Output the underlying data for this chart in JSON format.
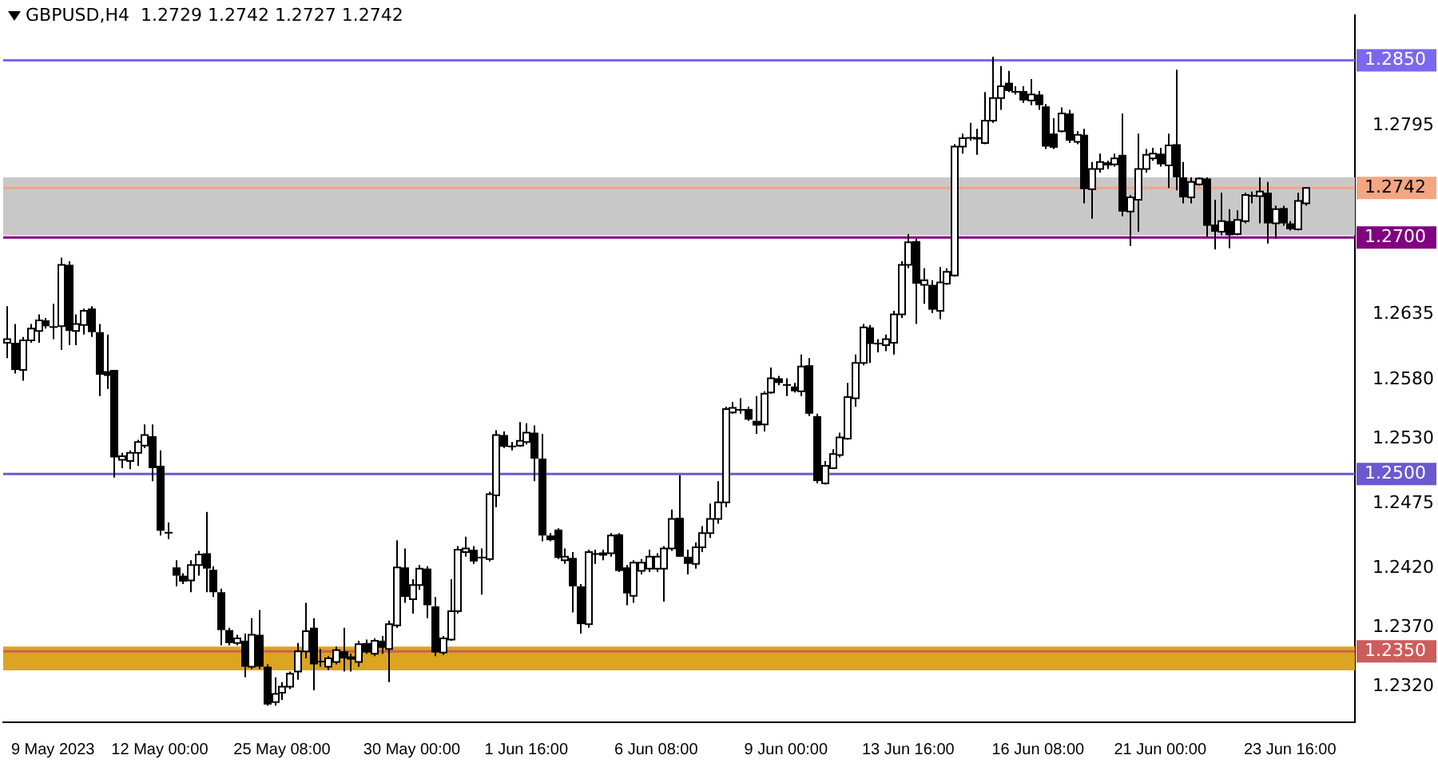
{
  "chart_data": {
    "type": "candlestick",
    "title": "GBPUSD,H4  1.2729 1.2742 1.2727 1.2742",
    "color": "#000000",
    "categories": [
      null,
      null,
      null,
      null,
      null,
      null,
      "9 May 2023",
      null,
      null,
      null,
      null,
      null,
      null,
      null,
      null,
      null,
      null,
      null,
      null,
      null,
      "12 May 00:00",
      null,
      null,
      null,
      null,
      null,
      null,
      null,
      null,
      null,
      null,
      null,
      null,
      null,
      null,
      null,
      "25 May 08:00",
      null,
      null,
      null,
      null,
      null,
      null,
      null,
      null,
      null,
      null,
      null,
      null,
      null,
      null,
      null,
      null,
      "30 May 00:00",
      null,
      null,
      null,
      null,
      null,
      null,
      null,
      null,
      null,
      null,
      null,
      null,
      null,
      null,
      "1 Jun 16:00",
      null,
      null,
      null,
      null,
      null,
      null,
      null,
      null,
      null,
      null,
      null,
      null,
      null,
      null,
      null,
      null,
      "6 Jun 08:00",
      null,
      null,
      null,
      null,
      null,
      null,
      null,
      null,
      null,
      null,
      null,
      null,
      null,
      null,
      null,
      null,
      "9 Jun 00:00",
      null,
      null,
      null,
      null,
      null,
      null,
      null,
      null,
      null,
      null,
      null,
      null,
      null,
      null,
      null,
      "13 Jun 16:00",
      null,
      null,
      null,
      null,
      null,
      null,
      null,
      null,
      null,
      null,
      null,
      null,
      null,
      null,
      null,
      null,
      "16 Jun 08:00",
      null,
      null,
      null,
      null,
      null,
      null,
      null,
      null,
      null,
      null,
      null,
      null,
      null,
      null,
      null,
      "21 Jun 00:00",
      null,
      null,
      null,
      null,
      null,
      null,
      null,
      null,
      null,
      null,
      null,
      null,
      null,
      null,
      null,
      null,
      "23 Jun 16:00",
      null,
      null,
      null,
      null,
      null,
      null,
      null,
      null
    ],
    "ohlc": [
      [
        1.2611,
        1.2642,
        1.2598,
        1.2614
      ],
      [
        1.2611,
        1.2627,
        1.2585,
        1.2588
      ],
      [
        1.2588,
        1.2616,
        1.2579,
        1.2613
      ],
      [
        1.2613,
        1.2627,
        1.2611,
        1.2623
      ],
      [
        1.2621,
        1.2635,
        1.2611,
        1.263
      ],
      [
        1.263,
        1.2632,
        1.2623,
        1.2625
      ],
      [
        1.2625,
        1.2644,
        1.2614,
        1.2624
      ],
      [
        1.2625,
        1.2683,
        1.2605,
        1.2677
      ],
      [
        1.2677,
        1.268,
        1.2609,
        1.2621
      ],
      [
        1.2621,
        1.2635,
        1.2609,
        1.2627
      ],
      [
        1.2626,
        1.264,
        1.2618,
        1.2638
      ],
      [
        1.264,
        1.2642,
        1.2616,
        1.262
      ],
      [
        1.262,
        1.2627,
        1.2566,
        1.2584
      ],
      [
        1.2587,
        1.2618,
        1.2572,
        1.2583
      ],
      [
        1.2588,
        1.2588,
        1.2497,
        1.2514
      ],
      [
        1.2512,
        1.2518,
        1.2505,
        1.2515
      ],
      [
        1.2511,
        1.252,
        1.2504,
        1.2518
      ],
      [
        1.2518,
        1.2529,
        1.2507,
        1.2527
      ],
      [
        1.2524,
        1.2542,
        1.2522,
        1.2533
      ],
      [
        1.2532,
        1.2542,
        1.2494,
        1.2505
      ],
      [
        1.2507,
        1.252,
        1.2448,
        1.2452
      ],
      [
        1.2451,
        1.2459,
        1.2445,
        1.245
      ],
      [
        1.2421,
        1.2427,
        1.2405,
        1.2414
      ],
      [
        1.2414,
        1.2416,
        1.2407,
        1.2409
      ],
      [
        1.241,
        1.2427,
        1.24,
        1.2423
      ],
      [
        1.2423,
        1.2435,
        1.2414,
        1.2432
      ],
      [
        1.2433,
        1.2468,
        1.24,
        1.242
      ],
      [
        1.2419,
        1.2422,
        1.2396,
        1.24
      ],
      [
        1.24,
        1.2403,
        1.2355,
        1.2368
      ],
      [
        1.2368,
        1.237,
        1.2355,
        1.2357
      ],
      [
        1.2357,
        1.2364,
        1.2355,
        1.2361
      ],
      [
        1.2359,
        1.2365,
        1.2328,
        1.2337
      ],
      [
        1.2337,
        1.2378,
        1.2335,
        1.2364
      ],
      [
        1.2364,
        1.2385,
        1.2335,
        1.2337
      ],
      [
        1.2337,
        1.2339,
        1.2304,
        1.2305
      ],
      [
        1.2307,
        1.2328,
        1.2304,
        1.2314
      ],
      [
        1.2315,
        1.2324,
        1.2309,
        1.232
      ],
      [
        1.232,
        1.2333,
        1.2318,
        1.2331
      ],
      [
        1.2333,
        1.2357,
        1.2326,
        1.235
      ],
      [
        1.235,
        1.2391,
        1.2344,
        1.2367
      ],
      [
        1.237,
        1.2378,
        1.2317,
        1.2339
      ],
      [
        1.2342,
        1.2352,
        1.2337,
        1.2341
      ],
      [
        1.2337,
        1.2346,
        1.2334,
        1.2344
      ],
      [
        1.2341,
        1.2354,
        1.2339,
        1.2351
      ],
      [
        1.235,
        1.237,
        1.2333,
        1.2344
      ],
      [
        1.2344,
        1.2348,
        1.2333,
        1.2345
      ],
      [
        1.2341,
        1.2359,
        1.2337,
        1.2356
      ],
      [
        1.2357,
        1.236,
        1.2348,
        1.2349
      ],
      [
        1.2348,
        1.2361,
        1.2346,
        1.2359
      ],
      [
        1.2359,
        1.2363,
        1.2348,
        1.2353
      ],
      [
        1.2352,
        1.2376,
        1.2324,
        1.2373
      ],
      [
        1.2372,
        1.2444,
        1.237,
        1.2421
      ],
      [
        1.2421,
        1.2437,
        1.2391,
        1.2396
      ],
      [
        1.2394,
        1.2411,
        1.2382,
        1.2406
      ],
      [
        1.2406,
        1.2423,
        1.2402,
        1.242
      ],
      [
        1.242,
        1.2422,
        1.2378,
        1.2389
      ],
      [
        1.2388,
        1.2396,
        1.2346,
        1.2349
      ],
      [
        1.2349,
        1.2363,
        1.2347,
        1.2361
      ],
      [
        1.236,
        1.2411,
        1.2359,
        1.2384
      ],
      [
        1.2384,
        1.2439,
        1.2382,
        1.2436
      ],
      [
        1.2434,
        1.2447,
        1.243,
        1.2437
      ],
      [
        1.2436,
        1.2439,
        1.2424,
        1.2426
      ],
      [
        1.243,
        1.2437,
        1.2398,
        1.2429
      ],
      [
        1.2428,
        1.2485,
        1.2426,
        1.2483
      ],
      [
        1.2482,
        1.2537,
        1.2472,
        1.2533
      ],
      [
        1.2533,
        1.2536,
        1.2522,
        1.2523
      ],
      [
        1.2524,
        1.2527,
        1.252,
        1.2523
      ],
      [
        1.2524,
        1.2544,
        1.2523,
        1.2528
      ],
      [
        1.2527,
        1.2543,
        1.2525,
        1.2535
      ],
      [
        1.2535,
        1.2541,
        1.2494,
        1.2513
      ],
      [
        1.2513,
        1.2534,
        1.2443,
        1.2448
      ],
      [
        1.2448,
        1.245,
        1.2443,
        1.2444
      ],
      [
        1.2453,
        1.2454,
        1.2428,
        1.2429
      ],
      [
        1.2427,
        1.2437,
        1.2424,
        1.243
      ],
      [
        1.2429,
        1.2434,
        1.2383,
        1.2405
      ],
      [
        1.2405,
        1.2407,
        1.2365,
        1.2373
      ],
      [
        1.2373,
        1.2436,
        1.237,
        1.2434
      ],
      [
        1.2433,
        1.2436,
        1.2424,
        1.2432
      ],
      [
        1.2432,
        1.2436,
        1.2427,
        1.2433
      ],
      [
        1.2433,
        1.245,
        1.243,
        1.2448
      ],
      [
        1.2449,
        1.245,
        1.2417,
        1.2418
      ],
      [
        1.2421,
        1.2423,
        1.2389,
        1.2399
      ],
      [
        1.2397,
        1.2427,
        1.2391,
        1.2425
      ],
      [
        1.2418,
        1.2428,
        1.2415,
        1.2425
      ],
      [
        1.242,
        1.2436,
        1.2417,
        1.243
      ],
      [
        1.242,
        1.2433,
        1.2417,
        1.243
      ],
      [
        1.242,
        1.2439,
        1.2392,
        1.2437
      ],
      [
        1.2437,
        1.247,
        1.2435,
        1.2462
      ],
      [
        1.2463,
        1.2499,
        1.243,
        1.243
      ],
      [
        1.243,
        1.2436,
        1.2415,
        1.2424
      ],
      [
        1.2424,
        1.2442,
        1.242,
        1.2438
      ],
      [
        1.2438,
        1.2456,
        1.2434,
        1.245
      ],
      [
        1.245,
        1.2475,
        1.2446,
        1.2462
      ],
      [
        1.2462,
        1.2494,
        1.2458,
        1.2476
      ],
      [
        1.2476,
        1.2557,
        1.2472,
        1.2555
      ],
      [
        1.2552,
        1.2561,
        1.2551,
        1.2556
      ],
      [
        1.2555,
        1.2564,
        1.2551,
        1.2554
      ],
      [
        1.2555,
        1.2557,
        1.2545,
        1.2546
      ],
      [
        1.2545,
        1.2566,
        1.2534,
        1.2541
      ],
      [
        1.2542,
        1.257,
        1.2536,
        1.2568
      ],
      [
        1.2569,
        1.259,
        1.2568,
        1.2581
      ],
      [
        1.2581,
        1.2583,
        1.2575,
        1.2577
      ],
      [
        1.2576,
        1.2581,
        1.2566,
        1.2575
      ],
      [
        1.2574,
        1.2577,
        1.2569,
        1.257
      ],
      [
        1.257,
        1.2601,
        1.2566,
        1.2591
      ],
      [
        1.2592,
        1.2598,
        1.2549,
        1.2551
      ],
      [
        1.2549,
        1.2551,
        1.2492,
        1.2494
      ],
      [
        1.2492,
        1.2511,
        1.2491,
        1.2507
      ],
      [
        1.2505,
        1.2521,
        1.2504,
        1.2517
      ],
      [
        1.2516,
        1.2535,
        1.2514,
        1.2531
      ],
      [
        1.253,
        1.2577,
        1.2529,
        1.2565
      ],
      [
        1.2564,
        1.2601,
        1.2557,
        1.2594
      ],
      [
        1.2594,
        1.2627,
        1.2592,
        1.2624
      ],
      [
        1.2624,
        1.2626,
        1.2594,
        1.261
      ],
      [
        1.2611,
        1.2614,
        1.2603,
        1.261
      ],
      [
        1.2609,
        1.2618,
        1.2604,
        1.2614
      ],
      [
        1.2611,
        1.2638,
        1.2601,
        1.2635
      ],
      [
        1.2635,
        1.268,
        1.2632,
        1.2677
      ],
      [
        1.2677,
        1.2703,
        1.2674,
        1.2696
      ],
      [
        1.2697,
        1.2699,
        1.2627,
        1.2661
      ],
      [
        1.266,
        1.2674,
        1.2644,
        1.2664
      ],
      [
        1.266,
        1.2664,
        1.2636,
        1.2639
      ],
      [
        1.2638,
        1.2675,
        1.2631,
        1.2662
      ],
      [
        1.2661,
        1.2674,
        1.266,
        1.2671
      ],
      [
        1.2668,
        1.2779,
        1.2667,
        1.2777
      ],
      [
        1.2777,
        1.2788,
        1.2771,
        1.2784
      ],
      [
        1.2785,
        1.2797,
        1.2782,
        1.2784
      ],
      [
        1.2785,
        1.2792,
        1.277,
        1.2783
      ],
      [
        1.278,
        1.2823,
        1.2779,
        1.2799
      ],
      [
        1.2799,
        1.2853,
        1.2797,
        1.2818
      ],
      [
        1.2818,
        1.2845,
        1.2808,
        1.2828
      ],
      [
        1.2831,
        1.2841,
        1.2823,
        1.2824
      ],
      [
        1.2824,
        1.2828,
        1.2821,
        1.2823
      ],
      [
        1.2824,
        1.2828,
        1.2814,
        1.2816
      ],
      [
        1.2816,
        1.2834,
        1.2812,
        1.2821
      ],
      [
        1.2821,
        1.2824,
        1.2808,
        1.2812
      ],
      [
        1.2811,
        1.2813,
        1.2775,
        1.2777
      ],
      [
        1.2788,
        1.2801,
        1.2775,
        1.2776
      ],
      [
        1.279,
        1.281,
        1.2789,
        1.2805
      ],
      [
        1.2805,
        1.2808,
        1.278,
        1.2782
      ],
      [
        1.2781,
        1.279,
        1.2779,
        1.2787
      ],
      [
        1.2787,
        1.2792,
        1.2729,
        1.2741
      ],
      [
        1.2741,
        1.2764,
        1.2716,
        1.2758
      ],
      [
        1.2758,
        1.2771,
        1.2755,
        1.2764
      ],
      [
        1.2762,
        1.2765,
        1.2758,
        1.2763
      ],
      [
        1.2762,
        1.2771,
        1.276,
        1.2767
      ],
      [
        1.277,
        1.2805,
        1.2718,
        1.2722
      ],
      [
        1.2722,
        1.2736,
        1.2693,
        1.2734
      ],
      [
        1.2732,
        1.2788,
        1.2705,
        1.2758
      ],
      [
        1.2758,
        1.2775,
        1.2755,
        1.277
      ],
      [
        1.2767,
        1.2776,
        1.2765,
        1.2771
      ],
      [
        1.2771,
        1.2776,
        1.276,
        1.2762
      ],
      [
        1.2761,
        1.2788,
        1.2742,
        1.2778
      ],
      [
        1.2779,
        1.2842,
        1.274,
        1.2751
      ],
      [
        1.2751,
        1.2764,
        1.2729,
        1.2734
      ],
      [
        1.2734,
        1.2751,
        1.2729,
        1.2747
      ],
      [
        1.2745,
        1.2751,
        1.2744,
        1.275
      ],
      [
        1.275,
        1.2751,
        1.2701,
        1.271
      ],
      [
        1.2711,
        1.2732,
        1.269,
        1.2705
      ],
      [
        1.2705,
        1.2738,
        1.2702,
        1.2714
      ],
      [
        1.2714,
        1.2724,
        1.2691,
        1.2702
      ],
      [
        1.2703,
        1.2723,
        1.2702,
        1.2715
      ],
      [
        1.2714,
        1.2738,
        1.2712,
        1.2736
      ],
      [
        1.2736,
        1.2739,
        1.2729,
        1.2735
      ],
      [
        1.2735,
        1.2751,
        1.2712,
        1.2739
      ],
      [
        1.2738,
        1.2747,
        1.2695,
        1.2712
      ],
      [
        1.2712,
        1.2727,
        1.2699,
        1.2724
      ],
      [
        1.2725,
        1.2727,
        1.271,
        1.2712
      ],
      [
        1.2712,
        1.2714,
        1.2706,
        1.2707
      ],
      [
        1.2707,
        1.2738,
        1.2706,
        1.2731
      ],
      [
        1.2729,
        1.2742,
        1.2727,
        1.2742
      ],
      null,
      null,
      null,
      null,
      null,
      null
    ],
    "colors": [
      "#ffffff",
      "#000000",
      "#ffffff",
      "#ffffff",
      "#ffffff",
      "#000000",
      "#000000",
      "#ffffff",
      "#000000",
      "#ffffff",
      "#ffffff",
      "#000000",
      "#000000",
      "#000000",
      "#000000",
      "#ffffff",
      "#ffffff",
      "#ffffff",
      "#ffffff",
      "#000000",
      "#000000",
      "#000000",
      "#000000",
      "#000000",
      "#ffffff",
      "#ffffff",
      "#000000",
      "#000000",
      "#000000",
      "#000000",
      "#ffffff",
      "#000000",
      "#ffffff",
      "#000000",
      "#000000",
      "#ffffff",
      "#ffffff",
      "#ffffff",
      "#ffffff",
      "#ffffff",
      "#000000",
      "#000000",
      "#ffffff",
      "#ffffff",
      "#000000",
      "#ffffff",
      "#ffffff",
      "#000000",
      "#ffffff",
      "#000000",
      "#ffffff",
      "#ffffff",
      "#000000",
      "#ffffff",
      "#ffffff",
      "#000000",
      "#000000",
      "#ffffff",
      "#ffffff",
      "#ffffff",
      "#ffffff",
      "#000000",
      "#000000",
      "#ffffff",
      "#ffffff",
      "#000000",
      "#000000",
      "#ffffff",
      "#ffffff",
      "#000000",
      "#000000",
      "#000000",
      "#000000",
      "#ffffff",
      "#000000",
      "#000000",
      "#ffffff",
      "#000000",
      "#ffffff",
      "#ffffff",
      "#000000",
      "#000000",
      "#ffffff",
      "#ffffff",
      "#ffffff",
      "#ffffff",
      "#ffffff",
      "#ffffff",
      "#000000",
      "#000000",
      "#ffffff",
      "#ffffff",
      "#ffffff",
      "#ffffff",
      "#ffffff",
      "#ffffff",
      "#000000",
      "#000000",
      "#000000",
      "#ffffff",
      "#ffffff",
      "#000000",
      "#000000",
      "#000000",
      "#ffffff",
      "#000000",
      "#000000",
      "#ffffff",
      "#ffffff",
      "#ffffff",
      "#ffffff",
      "#ffffff",
      "#ffffff",
      "#000000",
      "#000000",
      "#ffffff",
      "#ffffff",
      "#ffffff",
      "#ffffff",
      "#000000",
      "#ffffff",
      "#000000",
      "#ffffff",
      "#ffffff",
      "#ffffff",
      "#ffffff",
      "#000000",
      "#000000",
      "#ffffff",
      "#ffffff",
      "#ffffff",
      "#000000",
      "#000000",
      "#000000",
      "#ffffff",
      "#000000",
      "#000000",
      "#000000",
      "#ffffff",
      "#000000",
      "#ffffff",
      "#000000",
      "#ffffff",
      "#ffffff",
      "#ffffff",
      "#ffffff",
      "#000000",
      "#ffffff",
      "#ffffff",
      "#ffffff",
      "#ffffff",
      "#000000",
      "#ffffff",
      "#000000",
      "#000000",
      "#ffffff",
      "#ffffff",
      "#000000",
      "#000000",
      "#ffffff",
      "#000000",
      "#ffffff",
      "#ffffff",
      "#000000",
      "#ffffff",
      "#000000",
      "#ffffff",
      "#000000",
      "#000000",
      "#ffffff",
      "#ffffff",
      null,
      null,
      null,
      null,
      null,
      null
    ],
    "ylim": [
      1.229,
      1.2888
    ],
    "yticks": [
      {
        "value": 1.232,
        "label": "1.2320"
      },
      {
        "value": 1.237,
        "label": "1.2370"
      },
      {
        "value": 1.242,
        "label": "1.2420"
      },
      {
        "value": 1.2475,
        "label": "1.2475"
      },
      {
        "value": 1.253,
        "label": "1.2530"
      },
      {
        "value": 1.258,
        "label": "1.2580"
      },
      {
        "value": 1.2635,
        "label": "1.2635"
      },
      {
        "value": 1.2795,
        "label": "1.2795"
      }
    ],
    "bands": [
      {
        "axis": "y",
        "from": 1.2334,
        "to": 1.2354,
        "color": "#daa520"
      },
      {
        "axis": "y",
        "from": 1.2702,
        "to": 1.2751,
        "color": "#c8c8c8"
      }
    ],
    "ref_lines": [
      {
        "axis": "y",
        "value": 1.285,
        "label": "1.2850",
        "color": "#7b68ee"
      },
      {
        "axis": "y",
        "value": 1.2742,
        "label": "1.2742",
        "color": "#f4a582"
      },
      {
        "axis": "y",
        "value": 1.27,
        "label": "1.2700",
        "color": "#800080"
      },
      {
        "axis": "y",
        "value": 1.25,
        "label": "1.2500",
        "color": "#6a5acd"
      },
      {
        "axis": "y",
        "value": 1.235,
        "label": "1.2350",
        "color": "#cd5c5c"
      }
    ],
    "grid": false,
    "legend": false
  }
}
